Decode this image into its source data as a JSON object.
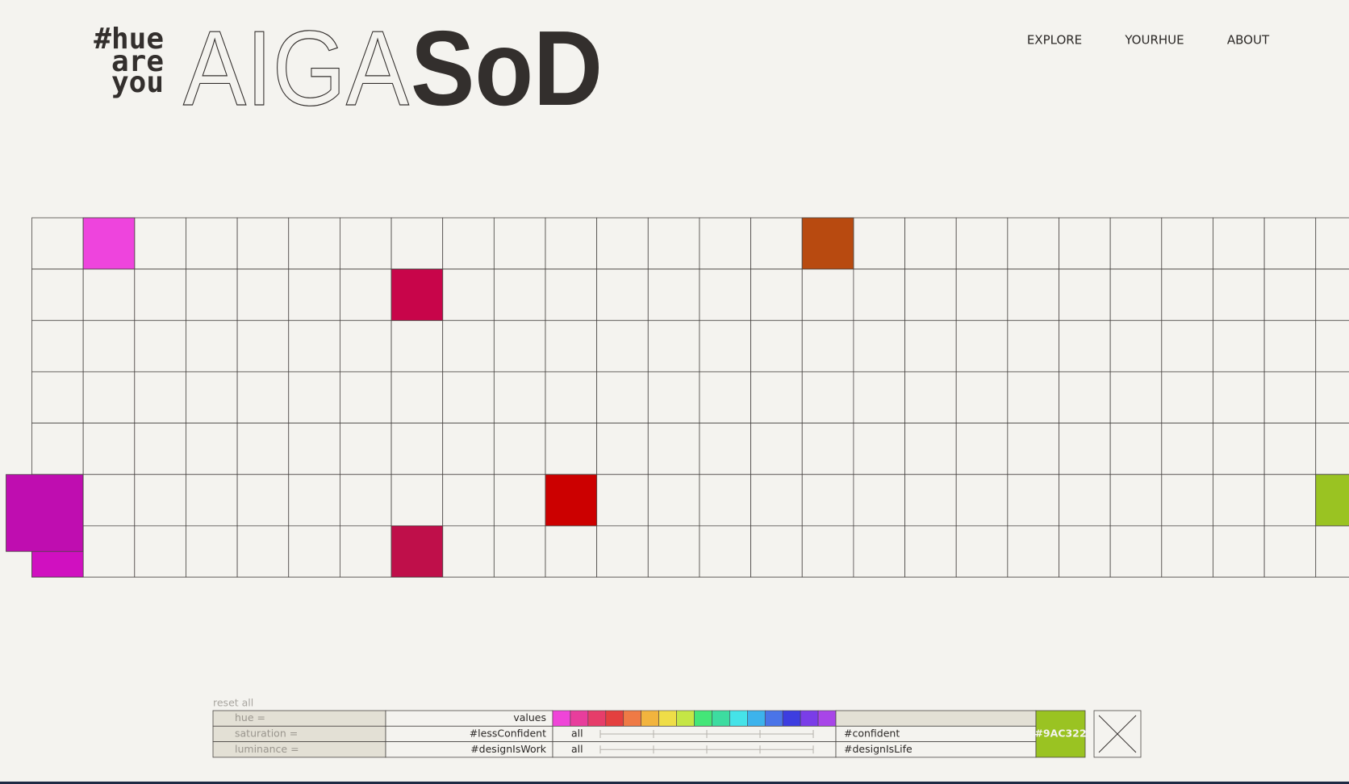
{
  "logo": {
    "tag_lines": [
      "#hue",
      "are",
      "you"
    ],
    "outline_word": "AIGA",
    "bold_word": "SoD"
  },
  "nav": [
    "EXPLORE",
    "YOURHUE",
    "ABOUT"
  ],
  "filters": {
    "reset": "reset all",
    "rows": [
      {
        "label": "hue =",
        "left": "values"
      },
      {
        "label": "saturation =",
        "left": "#lessConfident",
        "range": "all",
        "right": "#confident"
      },
      {
        "label": "luminance =",
        "left": "#designIsWork",
        "range": "all",
        "right": "#designIsLife"
      }
    ],
    "hue_swatches": [
      "#ef45d8",
      "#e83d9c",
      "#e63d6a",
      "#e4403f",
      "#ef7a45",
      "#f2b43e",
      "#efdd47",
      "#c5e645",
      "#44e678",
      "#3ddca0",
      "#45e3e8",
      "#3db3ec",
      "#4a74e8",
      "#3d3de0",
      "#7a3de8",
      "#a845e8"
    ],
    "selected": {
      "label": "#9AC322",
      "color": "#9ac322"
    }
  }
}
